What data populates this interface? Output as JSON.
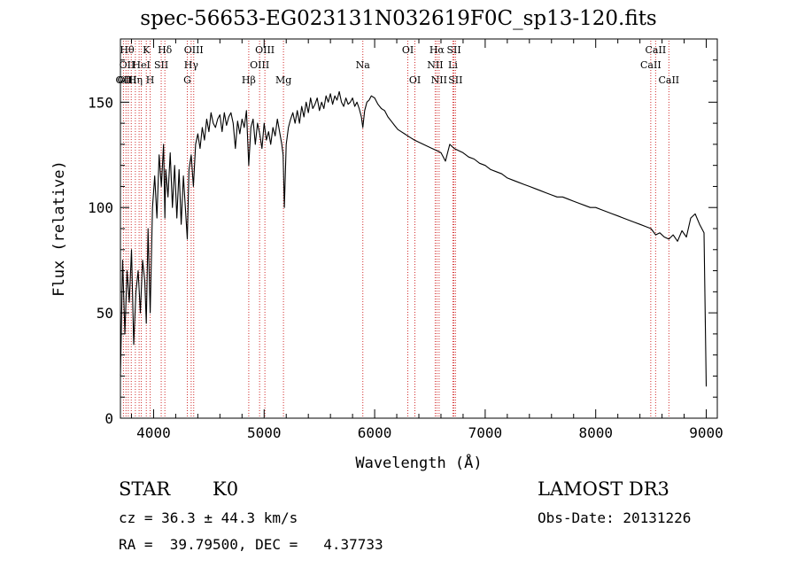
{
  "chart_data": {
    "type": "line",
    "title": "spec-56653-EG023131N032619F0C_sp13-120.fits",
    "xlabel": "Wavelength (Å)",
    "ylabel": "Flux (relative)",
    "xlim": [
      3700,
      9100
    ],
    "ylim": [
      0,
      180
    ],
    "xticks": [
      4000,
      5000,
      6000,
      7000,
      8000,
      9000
    ],
    "yticks": [
      0,
      50,
      100,
      150
    ],
    "grid": false,
    "series": [
      {
        "x": [
          3700,
          3720,
          3740,
          3760,
          3780,
          3800,
          3820,
          3840,
          3860,
          3880,
          3900,
          3920,
          3934,
          3950,
          3969,
          3990,
          4010,
          4030,
          4050,
          4070,
          4090,
          4102,
          4110,
          4130,
          4150,
          4170,
          4190,
          4210,
          4230,
          4250,
          4270,
          4290,
          4305,
          4320,
          4340,
          4360,
          4380,
          4400,
          4420,
          4440,
          4460,
          4480,
          4500,
          4520,
          4540,
          4560,
          4580,
          4600,
          4620,
          4640,
          4660,
          4680,
          4700,
          4720,
          4740,
          4760,
          4780,
          4800,
          4820,
          4840,
          4861,
          4880,
          4900,
          4920,
          4940,
          4960,
          4980,
          5000,
          5020,
          5040,
          5060,
          5080,
          5100,
          5120,
          5140,
          5160,
          5172,
          5183,
          5200,
          5220,
          5240,
          5260,
          5280,
          5300,
          5320,
          5340,
          5360,
          5380,
          5400,
          5420,
          5440,
          5460,
          5480,
          5500,
          5520,
          5540,
          5560,
          5580,
          5600,
          5620,
          5640,
          5660,
          5680,
          5700,
          5720,
          5740,
          5760,
          5780,
          5800,
          5820,
          5840,
          5860,
          5880,
          5893,
          5910,
          5930,
          5950,
          5970,
          6000,
          6030,
          6060,
          6090,
          6120,
          6150,
          6180,
          6210,
          6240,
          6270,
          6300,
          6330,
          6360,
          6400,
          6440,
          6480,
          6520,
          6563,
          6600,
          6640,
          6680,
          6720,
          6760,
          6800,
          6850,
          6900,
          6950,
          7000,
          7050,
          7100,
          7150,
          7200,
          7250,
          7300,
          7350,
          7400,
          7450,
          7500,
          7550,
          7600,
          7650,
          7700,
          7750,
          7800,
          7850,
          7900,
          7950,
          8000,
          8050,
          8100,
          8150,
          8200,
          8250,
          8300,
          8350,
          8400,
          8450,
          8500,
          8542,
          8580,
          8620,
          8662,
          8700,
          8740,
          8780,
          8820,
          8860,
          8900,
          8940,
          8980,
          9000
        ],
        "y": [
          20,
          75,
          40,
          70,
          55,
          80,
          35,
          60,
          70,
          50,
          75,
          65,
          45,
          90,
          50,
          100,
          115,
          95,
          125,
          110,
          130,
          95,
          118,
          105,
          126,
          100,
          120,
          95,
          118,
          92,
          115,
          98,
          85,
          118,
          125,
          110,
          130,
          135,
          128,
          138,
          132,
          142,
          136,
          145,
          140,
          138,
          142,
          144,
          136,
          145,
          139,
          143,
          145,
          140,
          128,
          141,
          135,
          142,
          138,
          146,
          120,
          138,
          142,
          130,
          140,
          135,
          128,
          140,
          132,
          136,
          130,
          138,
          134,
          142,
          136,
          130,
          125,
          100,
          130,
          138,
          142,
          145,
          140,
          146,
          140,
          148,
          143,
          150,
          145,
          152,
          147,
          149,
          152,
          146,
          150,
          147,
          153,
          150,
          154,
          149,
          153,
          151,
          155,
          150,
          148,
          152,
          149,
          150,
          152,
          148,
          150,
          147,
          143,
          138,
          146,
          150,
          151,
          153,
          152,
          149,
          147,
          146,
          143,
          141,
          139,
          137,
          136,
          135,
          134,
          133,
          132,
          131,
          130,
          129,
          128,
          127,
          126,
          122,
          130,
          128,
          127,
          126,
          124,
          123,
          121,
          120,
          118,
          117,
          116,
          114,
          113,
          112,
          111,
          110,
          109,
          108,
          107,
          106,
          105,
          105,
          104,
          103,
          102,
          101,
          100,
          100,
          99,
          98,
          97,
          96,
          95,
          94,
          93,
          92,
          91,
          90,
          87,
          88,
          86,
          85,
          87,
          84,
          89,
          86,
          95,
          97,
          92,
          88,
          15
        ]
      }
    ],
    "lines": [
      {
        "x": 3727,
        "label": "OII",
        "row": 2
      },
      {
        "x": 3750,
        "label": "",
        "row": 0
      },
      {
        "x": 3771,
        "label": "",
        "row": 0
      },
      {
        "x": 3798,
        "label": "",
        "row": 0
      },
      {
        "x": 3835,
        "label": "Hη",
        "row": 2
      },
      {
        "x": 3869,
        "label": "",
        "row": 0
      },
      {
        "x": 3889,
        "label": "HeI",
        "row": 1
      },
      {
        "x": 3934,
        "label": "K",
        "row": 0
      },
      {
        "x": 3969,
        "label": "H",
        "row": 2
      },
      {
        "x": 4069,
        "label": "SII",
        "row": 1
      },
      {
        "x": 4102,
        "label": "Hδ",
        "row": 0
      },
      {
        "x": 4305,
        "label": "G",
        "row": 2
      },
      {
        "x": 4340,
        "label": "Hγ",
        "row": 1
      },
      {
        "x": 4363,
        "label": "OIII",
        "row": 0
      },
      {
        "x": 4861,
        "label": "Hβ",
        "row": 2
      },
      {
        "x": 4959,
        "label": "OIII",
        "row": 1
      },
      {
        "x": 5007,
        "label": "OIII",
        "row": 0
      },
      {
        "x": 5175,
        "label": "Mg",
        "row": 2
      },
      {
        "x": 5893,
        "label": "Na",
        "row": 1
      },
      {
        "x": 6300,
        "label": "OI",
        "row": 0
      },
      {
        "x": 6364,
        "label": "OI",
        "row": 2
      },
      {
        "x": 6548,
        "label": "NII",
        "row": 1
      },
      {
        "x": 6563,
        "label": "Hα",
        "row": 0
      },
      {
        "x": 6583,
        "label": "NII",
        "row": 2
      },
      {
        "x": 6708,
        "label": "Li",
        "row": 1
      },
      {
        "x": 6717,
        "label": "SII",
        "row": 0
      },
      {
        "x": 6731,
        "label": "SII",
        "row": 2
      },
      {
        "x": 8498,
        "label": "CaII",
        "row": 1
      },
      {
        "x": 8542,
        "label": "CaII",
        "row": 0
      },
      {
        "x": 8662,
        "label": "CaII",
        "row": 2
      }
    ],
    "extra_labels": [
      {
        "x": 3760,
        "row": 0,
        "label": "Hθ"
      },
      {
        "x": 3760,
        "row": 1,
        "label": "OII"
      },
      {
        "x": 3760,
        "row": 2,
        "label": "OIII"
      }
    ]
  },
  "info": {
    "class": "STAR",
    "subclass": "K0",
    "survey": "LAMOST DR3",
    "cz": "cz = 36.3 ± 44.3 km/s",
    "obs_date": "Obs-Date: 20131226",
    "radec": "RA =  39.79500, DEC =   4.37733"
  }
}
